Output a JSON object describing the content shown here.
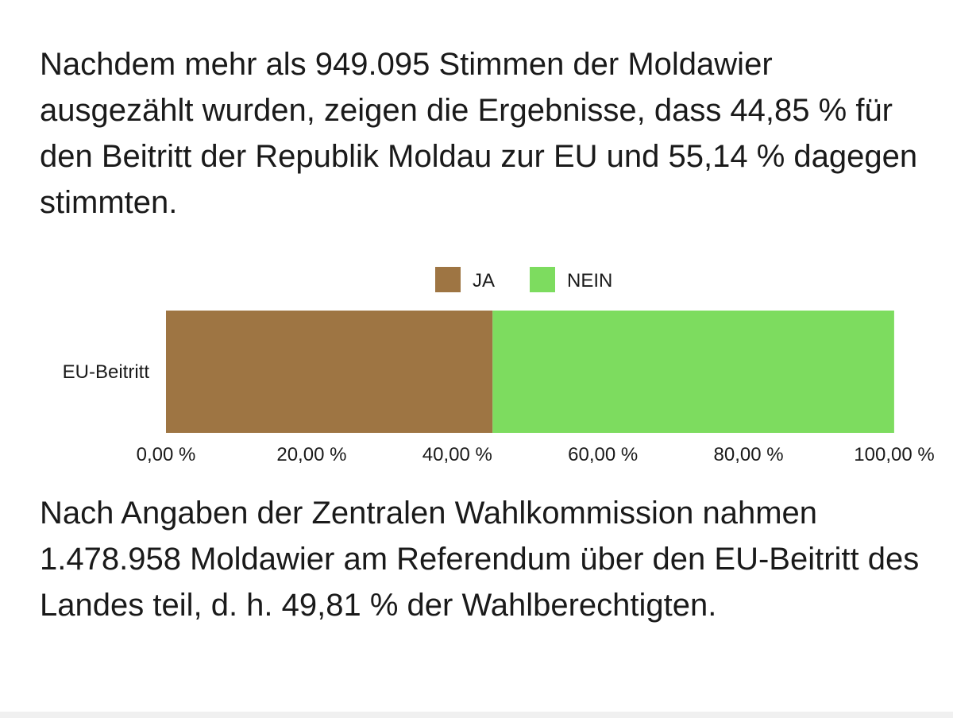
{
  "intro_text": "Nachdem mehr als 949.095 Stimmen der Moldawier ausgezählt wurden, zeigen die Ergebnisse, dass 44,85 % für den Beitritt der Republik Moldau zur EU und 55,14 % dagegen stimmten.",
  "footer_text": "Nach Angaben der Zentralen Wahlkommission nahmen 1.478.958 Moldawier am Referendum über den EU-Beitritt des Landes teil, d. h. 49,81 % der Wahlberechtigten.",
  "chart_data": {
    "type": "bar",
    "orientation": "horizontal",
    "stacked": true,
    "categories": [
      "EU-Beitritt"
    ],
    "series": [
      {
        "name": "JA",
        "values": [
          44.85
        ],
        "color": "#9e7543"
      },
      {
        "name": "NEIN",
        "values": [
          55.14
        ],
        "color": "#7ddc5f"
      }
    ],
    "xlim": [
      0,
      100
    ],
    "x_ticks": [
      0,
      20,
      40,
      60,
      80,
      100
    ],
    "x_tick_labels": [
      "0,00 %",
      "20,00 %",
      "40,00 %",
      "60,00 %",
      "80,00 %",
      "100,00 %"
    ],
    "legend_position": "top",
    "grid": false,
    "title": "",
    "xlabel": "",
    "ylabel": ""
  }
}
